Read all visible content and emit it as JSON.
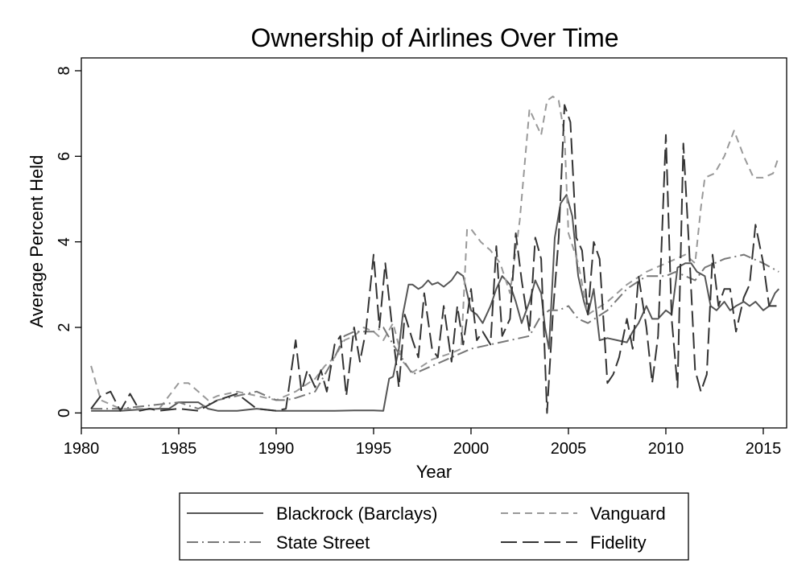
{
  "chart_data": {
    "type": "line",
    "title": "Ownership of Airlines Over Time",
    "xlabel": "Year",
    "ylabel": "Average Percent Held",
    "xlim": [
      1980,
      2016.2
    ],
    "ylim": [
      -0.35,
      8.3
    ],
    "xticks": [
      1980,
      1985,
      1990,
      1995,
      2000,
      2005,
      2010,
      2015
    ],
    "yticks": [
      0,
      2,
      4,
      6,
      8
    ],
    "grid": false,
    "legend_position": "bottom",
    "series": [
      {
        "name": "Blackrock (Barclays)",
        "color": "#555555",
        "dash": "solid",
        "x": [
          1980.5,
          1981.0,
          1981.5,
          1982.0,
          1983.0,
          1984.0,
          1984.5,
          1985.0,
          1985.5,
          1986.0,
          1986.5,
          1987.0,
          1988.0,
          1989.0,
          1990.0,
          1991.0,
          1992.0,
          1993.0,
          1994.0,
          1995.0,
          1995.5,
          1995.8,
          1996.0,
          1996.3,
          1996.5,
          1996.8,
          1997.0,
          1997.3,
          1997.5,
          1997.8,
          1998.0,
          1998.3,
          1998.6,
          1999.0,
          1999.3,
          1999.6,
          2000.0,
          2000.3,
          2000.6,
          2001.0,
          2001.3,
          2001.6,
          2002.0,
          2002.3,
          2002.6,
          2003.0,
          2003.3,
          2003.6,
          2003.8,
          2004.0,
          2004.3,
          2004.6,
          2004.9,
          2005.2,
          2005.5,
          2005.8,
          2006.0,
          2006.3,
          2006.6,
          2007.0,
          2007.5,
          2008.0,
          2008.3,
          2008.6,
          2009.0,
          2009.3,
          2009.6,
          2010.0,
          2010.3,
          2010.6,
          2011.0,
          2011.3,
          2011.6,
          2012.0,
          2012.3,
          2012.6,
          2013.0,
          2013.3,
          2013.6,
          2014.0,
          2014.3,
          2014.6,
          2015.0,
          2015.3,
          2015.6,
          2015.8
        ],
        "y": [
          0.05,
          0.05,
          0.05,
          0.05,
          0.08,
          0.1,
          0.1,
          0.25,
          0.25,
          0.25,
          0.1,
          0.05,
          0.05,
          0.1,
          0.05,
          0.05,
          0.05,
          0.05,
          0.06,
          0.06,
          0.05,
          0.8,
          0.85,
          1.5,
          2.3,
          3.0,
          3.0,
          2.9,
          2.95,
          3.1,
          3.0,
          3.05,
          2.95,
          3.1,
          3.3,
          3.2,
          2.4,
          2.3,
          2.1,
          2.5,
          2.9,
          3.2,
          3.0,
          2.6,
          2.1,
          2.6,
          3.1,
          2.8,
          2.0,
          1.5,
          4.1,
          4.9,
          5.1,
          4.6,
          3.2,
          2.6,
          2.3,
          2.9,
          1.7,
          1.75,
          1.7,
          1.65,
          1.9,
          2.1,
          2.5,
          2.2,
          2.2,
          2.4,
          2.3,
          3.4,
          3.5,
          3.5,
          3.3,
          3.2,
          2.5,
          2.4,
          2.6,
          2.4,
          2.5,
          2.6,
          2.5,
          2.6,
          2.4,
          2.5,
          2.8,
          2.9
        ]
      },
      {
        "name": "Vanguard",
        "color": "#999999",
        "dash": "short",
        "x": [
          1980.5,
          1981.0,
          1981.5,
          1982.0,
          1982.5,
          1983.0,
          1984.0,
          1985.0,
          1985.5,
          1986.0,
          1986.5,
          1987.0,
          1988.0,
          1989.0,
          1990.0,
          1991.0,
          1992.0,
          1992.5,
          1993.0,
          1993.5,
          1994.0,
          1994.5,
          1995.0,
          1995.5,
          1996.0,
          1996.5,
          1997.0,
          1997.5,
          1998.0,
          1999.0,
          1999.5,
          1999.8,
          2000.0,
          2000.5,
          2001.0,
          2001.5,
          2002.0,
          2002.5,
          2003.0,
          2003.3,
          2003.6,
          2003.9,
          2004.2,
          2004.5,
          2004.8,
          2005.0,
          2005.5,
          2006.0,
          2007.0,
          2008.0,
          2009.0,
          2010.0,
          2011.0,
          2011.5,
          2011.8,
          2012.0,
          2012.5,
          2013.0,
          2013.5,
          2014.0,
          2014.5,
          2015.0,
          2015.5,
          2015.8
        ],
        "y": [
          1.1,
          0.3,
          0.2,
          0.1,
          0.1,
          0.1,
          0.1,
          0.7,
          0.7,
          0.5,
          0.3,
          0.4,
          0.5,
          0.4,
          0.3,
          0.5,
          0.8,
          1.1,
          1.3,
          1.7,
          1.8,
          2.0,
          1.9,
          1.7,
          2.1,
          1.2,
          0.95,
          1.1,
          1.25,
          1.4,
          1.5,
          4.3,
          4.3,
          4.0,
          3.8,
          3.5,
          2.8,
          4.5,
          7.1,
          6.8,
          6.5,
          7.3,
          7.4,
          7.3,
          6.5,
          4.2,
          3.5,
          2.3,
          2.6,
          3.0,
          3.3,
          3.5,
          3.7,
          3.5,
          4.8,
          5.5,
          5.6,
          6.0,
          6.6,
          6.0,
          5.5,
          5.5,
          5.6,
          6.0
        ]
      },
      {
        "name": "State Street",
        "color": "#777777",
        "dash": "dashdot",
        "x": [
          1980.5,
          1981.0,
          1982.0,
          1983.0,
          1984.0,
          1985.0,
          1986.0,
          1987.0,
          1988.0,
          1989.0,
          1990.0,
          1990.5,
          1991.0,
          1992.0,
          1993.0,
          1993.5,
          1994.0,
          1995.0,
          1995.5,
          1996.0,
          1997.0,
          1998.0,
          1999.0,
          2000.0,
          2001.0,
          2002.0,
          2003.0,
          2003.5,
          2004.0,
          2004.5,
          2005.0,
          2005.5,
          2006.0,
          2007.0,
          2008.0,
          2009.0,
          2010.0,
          2010.5,
          2011.0,
          2011.5,
          2012.0,
          2013.0,
          2014.0,
          2015.0,
          2015.8
        ],
        "y": [
          0.1,
          0.1,
          0.1,
          0.15,
          0.2,
          0.25,
          0.1,
          0.3,
          0.4,
          0.5,
          0.3,
          0.3,
          0.35,
          0.5,
          1.3,
          1.8,
          1.9,
          1.9,
          2.0,
          1.6,
          0.9,
          1.1,
          1.3,
          1.5,
          1.6,
          1.7,
          1.8,
          2.2,
          2.4,
          2.4,
          2.5,
          2.2,
          2.1,
          2.4,
          2.9,
          3.2,
          3.2,
          3.3,
          3.2,
          3.1,
          3.4,
          3.6,
          3.7,
          3.5,
          3.3
        ]
      },
      {
        "name": "Fidelity",
        "color": "#333333",
        "dash": "long",
        "x": [
          1980.5,
          1981.0,
          1981.5,
          1982.0,
          1982.5,
          1983.0,
          1983.5,
          1984.0,
          1985.0,
          1986.0,
          1987.0,
          1988.0,
          1989.0,
          1990.0,
          1990.5,
          1991.0,
          1991.3,
          1991.6,
          1992.0,
          1992.3,
          1992.6,
          1993.0,
          1993.3,
          1993.6,
          1994.0,
          1994.3,
          1994.6,
          1995.0,
          1995.3,
          1995.6,
          1996.0,
          1996.3,
          1996.6,
          1997.0,
          1997.3,
          1997.6,
          1998.0,
          1998.3,
          1998.6,
          1999.0,
          1999.3,
          1999.6,
          2000.0,
          2000.3,
          2000.6,
          2001.0,
          2001.3,
          2001.6,
          2002.0,
          2002.3,
          2002.6,
          2003.0,
          2003.3,
          2003.6,
          2003.9,
          2004.2,
          2004.5,
          2004.8,
          2005.1,
          2005.4,
          2005.7,
          2006.0,
          2006.3,
          2006.6,
          2007.0,
          2007.3,
          2007.6,
          2008.0,
          2008.3,
          2008.6,
          2009.0,
          2009.3,
          2009.6,
          2010.0,
          2010.3,
          2010.6,
          2010.9,
          2011.2,
          2011.5,
          2011.8,
          2012.1,
          2012.4,
          2012.7,
          2013.0,
          2013.3,
          2013.6,
          2014.0,
          2014.3,
          2014.6,
          2015.0,
          2015.3,
          2015.6,
          2015.8
        ],
        "y": [
          0.1,
          0.4,
          0.5,
          0.05,
          0.45,
          0.05,
          0.1,
          0.05,
          0.1,
          0.05,
          0.3,
          0.45,
          0.1,
          0.05,
          0.1,
          1.7,
          0.5,
          1.0,
          0.6,
          1.0,
          0.5,
          1.6,
          1.8,
          0.4,
          2.0,
          1.2,
          1.9,
          3.7,
          2.0,
          3.5,
          1.8,
          0.6,
          2.3,
          1.7,
          1.3,
          2.8,
          1.5,
          1.3,
          2.5,
          1.2,
          2.5,
          1.6,
          2.9,
          1.7,
          1.9,
          1.6,
          3.9,
          1.8,
          2.2,
          4.2,
          3.1,
          1.9,
          4.1,
          3.6,
          0.0,
          2.3,
          4.1,
          7.2,
          6.8,
          4.1,
          3.8,
          2.3,
          4.0,
          3.6,
          0.7,
          0.9,
          1.3,
          2.2,
          1.5,
          3.2,
          2.0,
          0.7,
          1.8,
          6.5,
          2.2,
          0.6,
          6.3,
          3.8,
          1.0,
          0.5,
          0.9,
          3.7,
          2.5,
          2.9,
          2.9,
          1.9,
          2.7,
          3.0,
          4.4,
          3.5,
          2.5,
          2.5,
          2.5
        ]
      }
    ]
  }
}
